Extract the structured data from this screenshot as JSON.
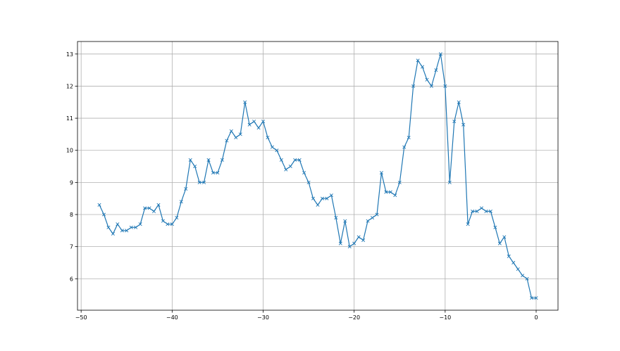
{
  "chart_data": {
    "type": "line",
    "title": "",
    "xlabel": "",
    "ylabel": "",
    "xlim": [
      -50.4,
      2.4
    ],
    "ylim": [
      5.02,
      13.39
    ],
    "xticks": [
      -50,
      -40,
      -30,
      -20,
      -10,
      0
    ],
    "xtick_labels": [
      "−50",
      "−40",
      "−30",
      "−20",
      "−10",
      "0"
    ],
    "yticks": [
      6,
      7,
      8,
      9,
      10,
      11,
      12,
      13
    ],
    "ytick_labels": [
      "6",
      "7",
      "8",
      "9",
      "10",
      "11",
      "12",
      "13"
    ],
    "grid": true,
    "marker": "x",
    "color": "#1f77b4",
    "x": [
      -48,
      -47.5,
      -47,
      -46.5,
      -46,
      -45.5,
      -45,
      -44.5,
      -44,
      -43.5,
      -43,
      -42.5,
      -42,
      -41.5,
      -41,
      -40.5,
      -40,
      -39.5,
      -39,
      -38.5,
      -38,
      -37.5,
      -37,
      -36.5,
      -36,
      -35.5,
      -35,
      -34.5,
      -34,
      -33.5,
      -33,
      -32.5,
      -32,
      -31.5,
      -31,
      -30.5,
      -30,
      -29.5,
      -29,
      -28.5,
      -28,
      -27.5,
      -27,
      -26.5,
      -26,
      -25.5,
      -25,
      -24.5,
      -24,
      -23.5,
      -23,
      -22.5,
      -22,
      -21.5,
      -21,
      -20.5,
      -20,
      -19.5,
      -19,
      -18.5,
      -18,
      -17.5,
      -17,
      -16.5,
      -16,
      -15.5,
      -15,
      -14.5,
      -14,
      -13.5,
      -13,
      -12.5,
      -12,
      -11.5,
      -11,
      -10.5,
      -10,
      -9.5,
      -9,
      -8.5,
      -8,
      -7.5,
      -7,
      -6.5,
      -6,
      -5.5,
      -5,
      -4.5,
      -4,
      -3.5,
      -3,
      -2.5,
      -2,
      -1.5,
      -1,
      -0.5,
      0
    ],
    "y": [
      8.3,
      8.0,
      7.6,
      7.4,
      7.7,
      7.5,
      7.5,
      7.6,
      7.6,
      7.7,
      8.2,
      8.2,
      8.1,
      8.3,
      7.8,
      7.7,
      7.7,
      7.9,
      8.4,
      8.8,
      9.7,
      9.5,
      9.0,
      9.0,
      9.7,
      9.3,
      9.3,
      9.7,
      10.3,
      10.6,
      10.4,
      10.5,
      11.5,
      10.8,
      10.9,
      10.7,
      10.9,
      10.4,
      10.1,
      10.0,
      9.7,
      9.4,
      9.5,
      9.7,
      9.7,
      9.3,
      9.0,
      8.5,
      8.3,
      8.5,
      8.5,
      8.6,
      7.9,
      7.1,
      7.8,
      7.0,
      7.1,
      7.3,
      7.2,
      7.8,
      7.9,
      8.0,
      9.3,
      8.7,
      8.7,
      8.6,
      9.0,
      10.1,
      10.4,
      12.0,
      12.8,
      12.6,
      12.2,
      12.0,
      12.5,
      13.0,
      12.0,
      9.0,
      10.9,
      11.5,
      10.8,
      7.7,
      8.1,
      8.1,
      8.2,
      8.1,
      8.1,
      7.6,
      7.1,
      7.3,
      6.7,
      6.5,
      6.3,
      6.1,
      6.0,
      5.4,
      5.4
    ]
  }
}
